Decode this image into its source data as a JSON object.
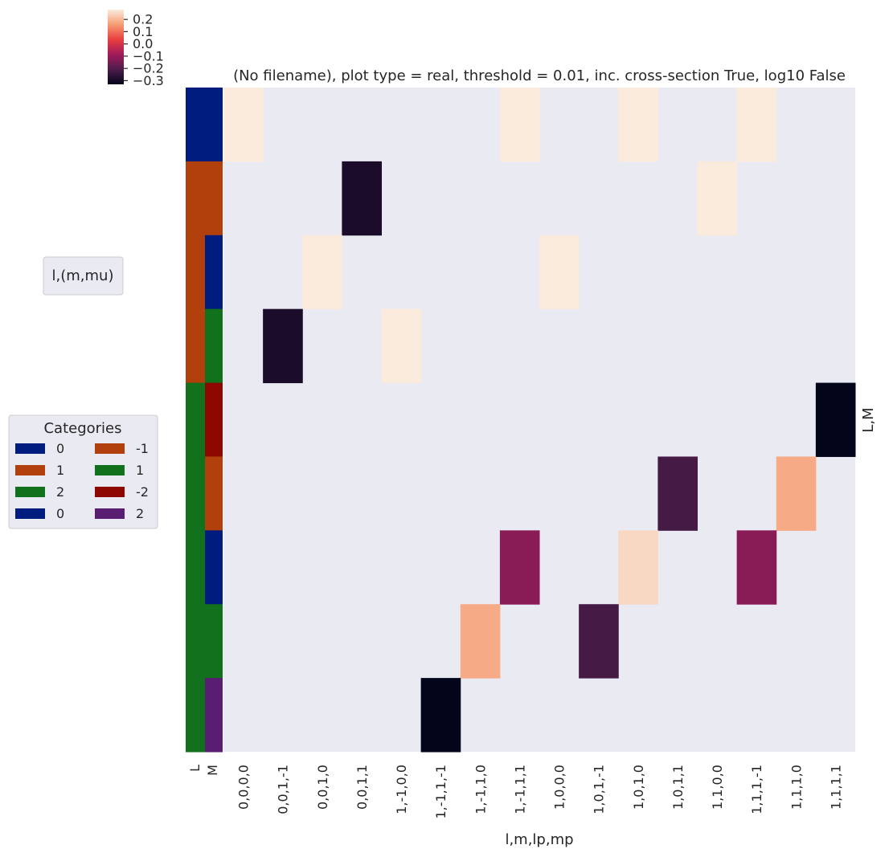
{
  "chart_data": {
    "type": "heatmap",
    "title": "(No filename), plot type = real, threshold = 0.01, inc. cross-section True, log10 False",
    "xlabel": "l,m,lp,mp",
    "ylabel_right": "L,M",
    "x_categories": [
      "0,0,0,0",
      "0,0,1,-1",
      "0,0,1,0",
      "0,0,1,1",
      "1,-1,0,0",
      "1,-1,1,-1",
      "1,-1,1,0",
      "1,-1,1,1",
      "1,0,0,0",
      "1,0,1,-1",
      "1,0,1,0",
      "1,0,1,1",
      "1,1,0,0",
      "1,1,1,-1",
      "1,1,1,0",
      "1,1,1,1"
    ],
    "row_levels": [
      {
        "L": "0",
        "M": "0"
      },
      {
        "L": "1",
        "M": "-1"
      },
      {
        "L": "1",
        "M": "0"
      },
      {
        "L": "1",
        "M": "1"
      },
      {
        "L": "2",
        "M": "-2"
      },
      {
        "L": "2",
        "M": "-1"
      },
      {
        "L": "2",
        "M": "0"
      },
      {
        "L": "2",
        "M": "1"
      },
      {
        "L": "2",
        "M": "2"
      }
    ],
    "row_annotation_labels": [
      "L",
      "M"
    ],
    "values": [
      [
        0.28,
        null,
        null,
        null,
        null,
        null,
        null,
        0.28,
        null,
        null,
        0.28,
        null,
        null,
        0.28,
        null,
        null
      ],
      [
        null,
        null,
        null,
        -0.29,
        null,
        null,
        null,
        null,
        null,
        null,
        null,
        null,
        0.28,
        null,
        null,
        null
      ],
      [
        null,
        null,
        0.28,
        null,
        null,
        null,
        null,
        null,
        0.28,
        null,
        null,
        null,
        null,
        null,
        null,
        null
      ],
      [
        null,
        -0.29,
        null,
        null,
        0.28,
        null,
        null,
        null,
        null,
        null,
        null,
        null,
        null,
        null,
        null,
        null
      ],
      [
        null,
        null,
        null,
        null,
        null,
        null,
        null,
        null,
        null,
        null,
        null,
        null,
        null,
        null,
        null,
        -0.33
      ],
      [
        null,
        null,
        null,
        null,
        null,
        null,
        null,
        null,
        null,
        null,
        null,
        -0.22,
        null,
        null,
        0.18,
        null
      ],
      [
        null,
        null,
        null,
        null,
        null,
        null,
        null,
        -0.12,
        null,
        null,
        0.25,
        null,
        null,
        -0.12,
        null,
        null
      ],
      [
        null,
        null,
        null,
        null,
        null,
        null,
        0.18,
        null,
        null,
        -0.22,
        null,
        null,
        null,
        null,
        null,
        null
      ],
      [
        null,
        null,
        null,
        null,
        null,
        -0.33,
        null,
        null,
        null,
        null,
        null,
        null,
        null,
        null,
        null,
        null
      ]
    ],
    "colorbar": {
      "vmin": -0.33,
      "vmax": 0.28,
      "ticks": [
        0.2,
        0.1,
        0.0,
        -0.1,
        -0.2,
        -0.3
      ],
      "tick_labels": [
        "0.2",
        "0.1",
        "0.0",
        "−0.1",
        "−0.2",
        "−0.3"
      ],
      "colormap": "rocket"
    },
    "legends": {
      "row_levels_title": "l,(m,mu)",
      "categories_title": "Categories",
      "categories": [
        {
          "label": "0",
          "color": "#001c7f"
        },
        {
          "label": "-1",
          "color": "#b1400d"
        },
        {
          "label": "1",
          "color": "#b1400d"
        },
        {
          "label": "1",
          "color": "#12711c"
        },
        {
          "label": "2",
          "color": "#12711c"
        },
        {
          "label": "-2",
          "color": "#8c0800"
        },
        {
          "label": "0",
          "color": "#001c7f"
        },
        {
          "label": "2",
          "color": "#591e71"
        }
      ]
    },
    "colors": {
      "background": "#eaeaf2",
      "L": {
        "0": "#001c7f",
        "1": "#b1400d",
        "2": "#12711c"
      },
      "M": {
        "-2": "#8c0800",
        "-1": "#b1400d",
        "0": "#001c7f",
        "1": "#12711c",
        "2": "#591e71"
      }
    }
  }
}
